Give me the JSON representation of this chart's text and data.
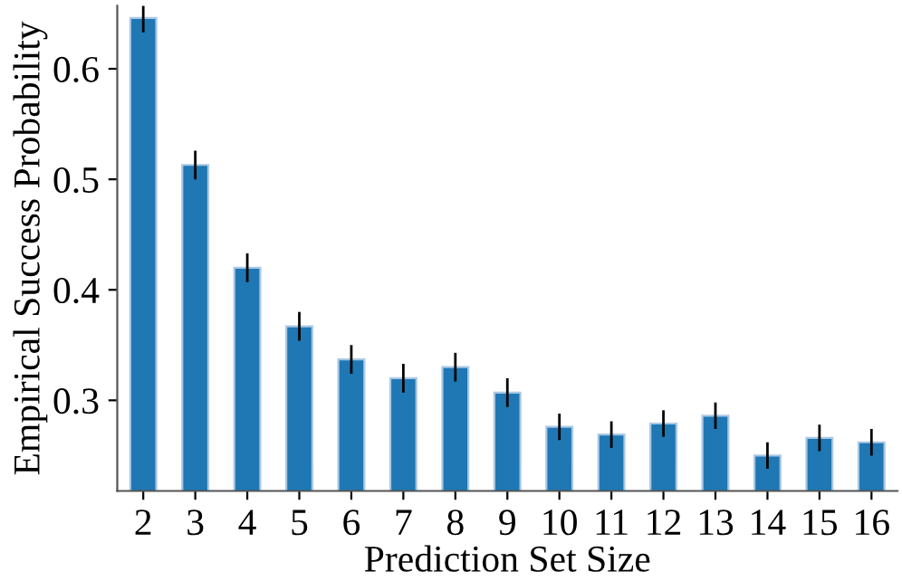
{
  "chart_data": {
    "type": "bar",
    "xlabel": "Prediction Set Size",
    "ylabel": "Empirical Success Probability",
    "categories": [
      "2",
      "3",
      "4",
      "5",
      "6",
      "7",
      "8",
      "9",
      "10",
      "11",
      "12",
      "13",
      "14",
      "15",
      "16"
    ],
    "values": [
      0.646,
      0.513,
      0.42,
      0.367,
      0.337,
      0.32,
      0.33,
      0.307,
      0.276,
      0.269,
      0.279,
      0.286,
      0.25,
      0.266,
      0.262
    ],
    "errors": [
      0.013,
      0.013,
      0.013,
      0.013,
      0.013,
      0.013,
      0.013,
      0.013,
      0.012,
      0.012,
      0.012,
      0.012,
      0.012,
      0.012,
      0.012
    ],
    "color": "#1f77b4",
    "ylim": [
      0.218,
      0.657
    ],
    "yticks": [
      0.3,
      0.4,
      0.5,
      0.6
    ],
    "grid": false
  }
}
